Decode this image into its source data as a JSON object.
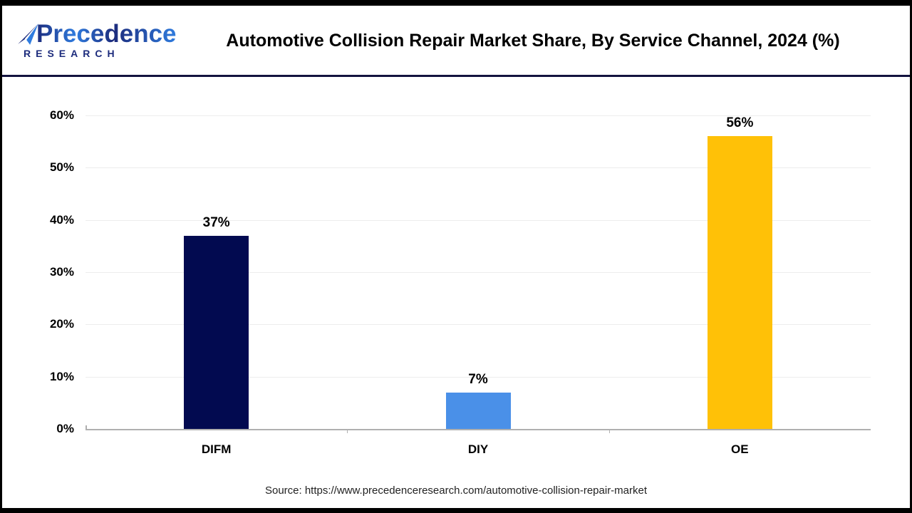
{
  "header": {
    "logo": {
      "line1": "Precedence",
      "line2": "RESEARCH",
      "icon": "paper-plane-icon"
    },
    "title": "Automotive Collision Repair Market Share, By Service Channel, 2024 (%)"
  },
  "chart_data": {
    "type": "bar",
    "title": "Automotive Collision Repair Market Share, By Service Channel, 2024 (%)",
    "categories": [
      "DIFM",
      "DIY",
      "OE"
    ],
    "values": [
      37,
      7,
      56
    ],
    "value_labels": [
      "37%",
      "7%",
      "56%"
    ],
    "bar_colors": [
      "#020A50",
      "#4A90E8",
      "#FFC107"
    ],
    "xlabel": "",
    "ylabel": "",
    "ylim": [
      0,
      60
    ],
    "yticks": [
      0,
      10,
      20,
      30,
      40,
      50,
      60
    ],
    "ytick_labels": [
      "0%",
      "10%",
      "20%",
      "30%",
      "40%",
      "50%",
      "60%"
    ],
    "grid": "horizontal-light",
    "legend": "none"
  },
  "footer": {
    "source": "Source: https://www.precedenceresearch.com/automotive-collision-repair-market"
  },
  "colors": {
    "frame": "#000000",
    "header_rule": "#13133F",
    "gridline": "#ededed",
    "axis_line": "#b0b0b0",
    "logo_navy": "#1C2B7C",
    "logo_blue": "#2F7CDF",
    "text": "#000000"
  }
}
